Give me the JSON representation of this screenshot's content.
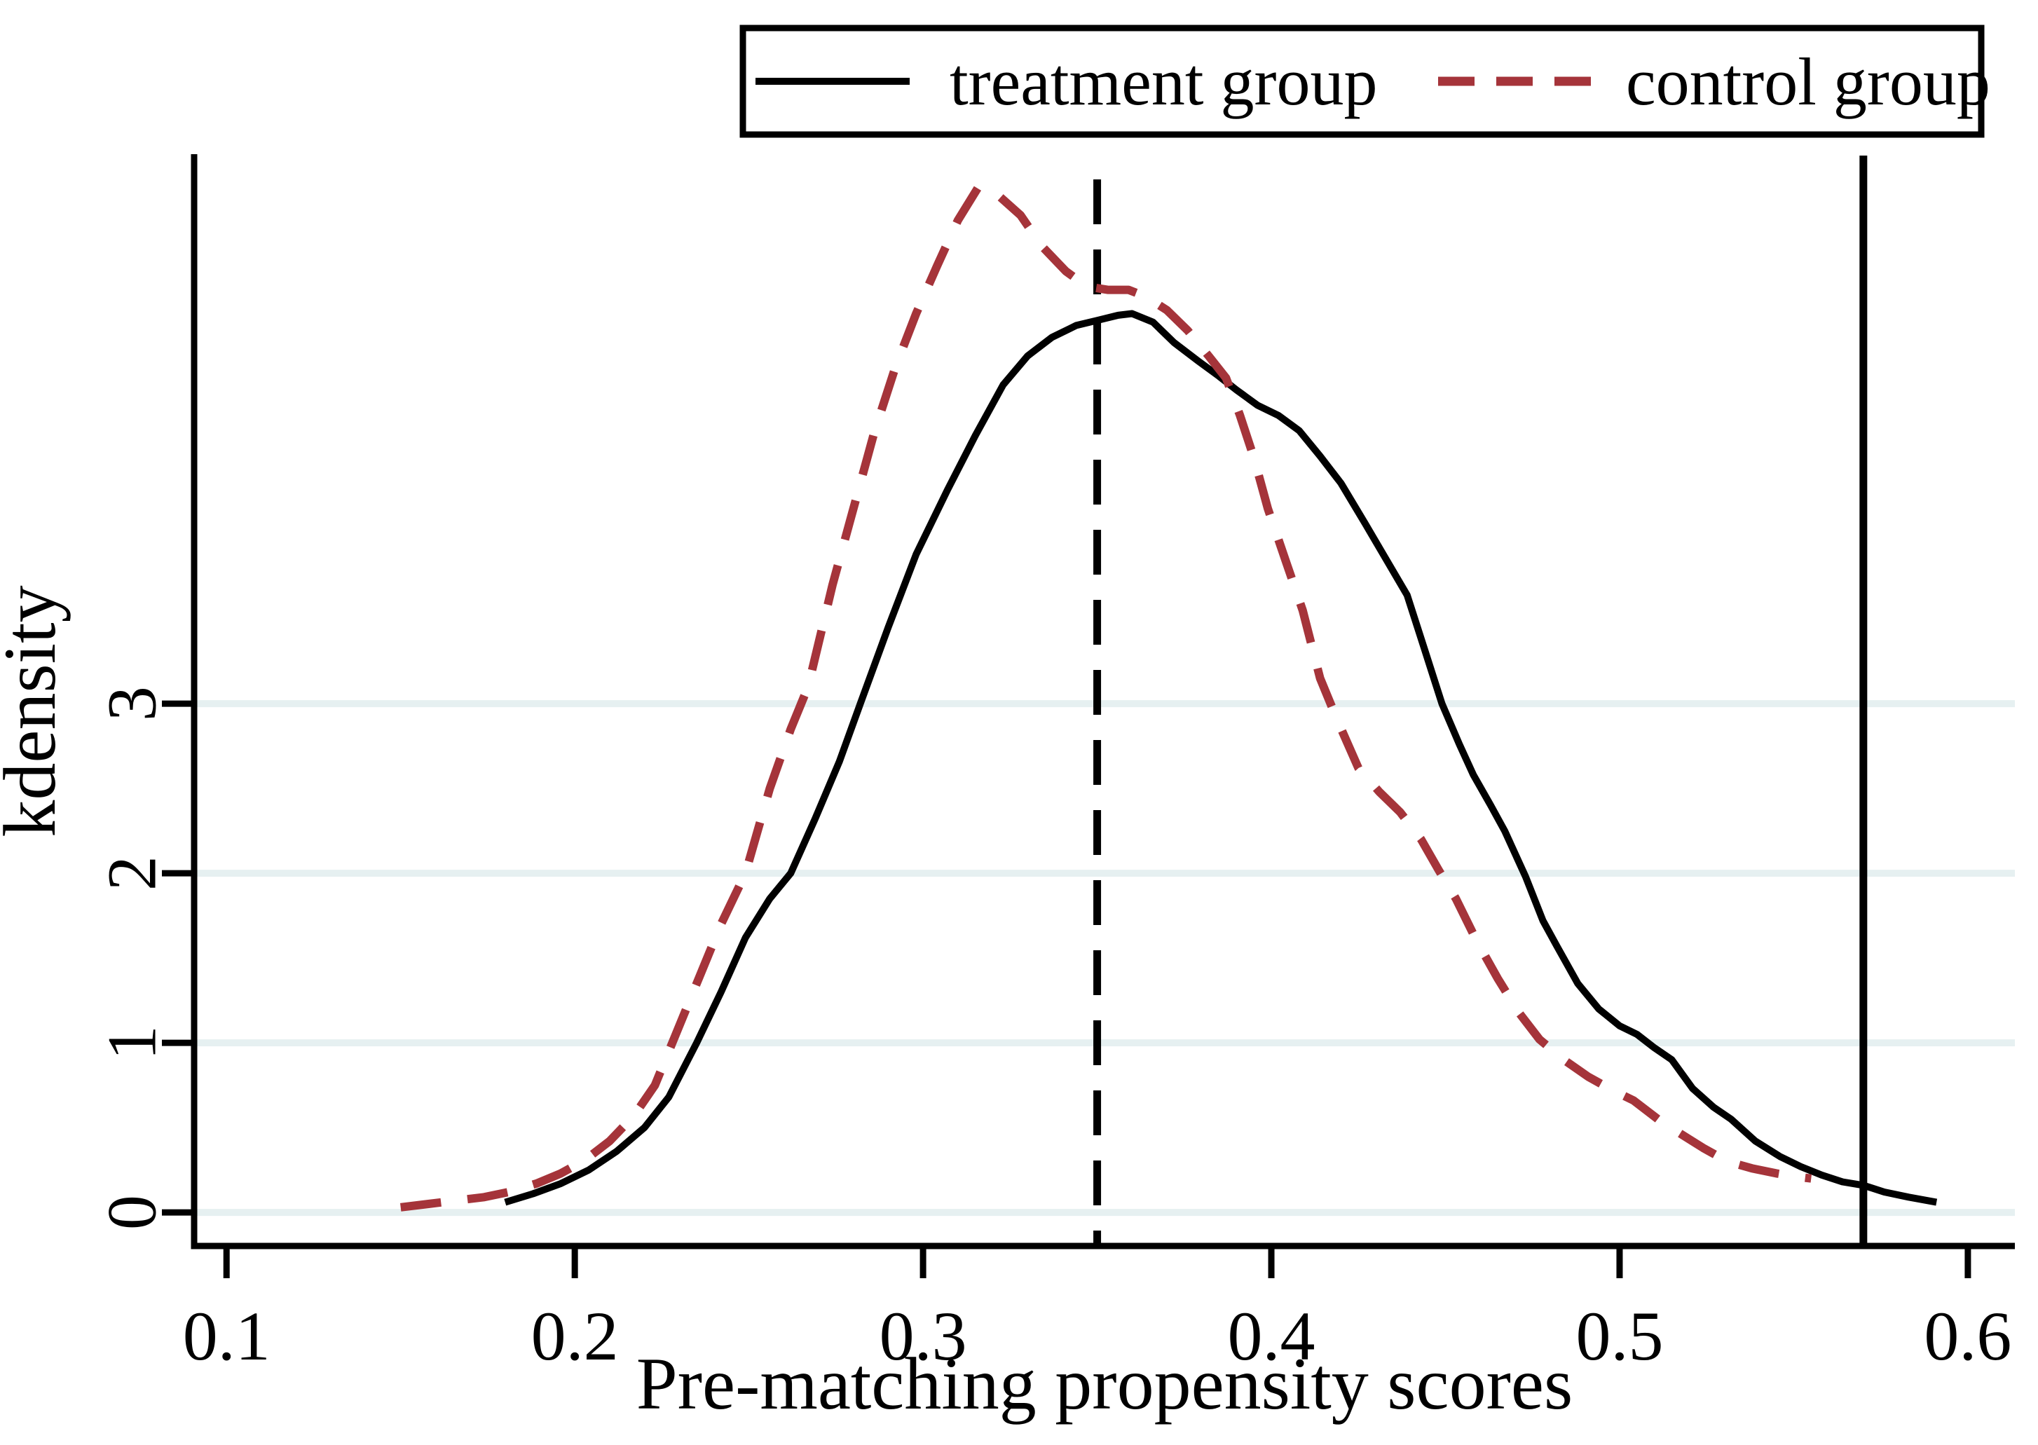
{
  "chart_data": {
    "type": "line",
    "title": "",
    "xlabel": "Pre-matching propensity scores",
    "ylabel": "kdensity",
    "xlim": [
      0.0907,
      0.6135
    ],
    "ylim": [
      -0.198,
      6.24
    ],
    "x_ticks": [
      0.1,
      0.2,
      0.3,
      0.4,
      0.5,
      0.6
    ],
    "x_tick_labels": [
      "0.1",
      "0.2",
      "0.3",
      "0.4",
      "0.5",
      "0.6"
    ],
    "y_ticks": [
      0,
      1,
      2,
      3
    ],
    "y_tick_labels": [
      "0",
      "1",
      "2",
      "3"
    ],
    "grid": "horizontal",
    "gridline_color": "#e6f0f1",
    "legend_position": "top-center-boxed",
    "series": [
      {
        "name": "treatment group",
        "style": "solid",
        "color": "#000000",
        "points": [
          [
            0.18,
            0.06
          ],
          [
            0.188,
            0.11
          ],
          [
            0.196,
            0.17
          ],
          [
            0.204,
            0.25
          ],
          [
            0.212,
            0.36
          ],
          [
            0.22,
            0.5
          ],
          [
            0.227,
            0.68
          ],
          [
            0.235,
            1.0
          ],
          [
            0.242,
            1.3
          ],
          [
            0.249,
            1.62
          ],
          [
            0.256,
            1.85
          ],
          [
            0.262,
            2.0
          ],
          [
            0.269,
            2.32
          ],
          [
            0.276,
            2.66
          ],
          [
            0.282,
            3.0
          ],
          [
            0.29,
            3.45
          ],
          [
            0.298,
            3.88
          ],
          [
            0.307,
            4.26
          ],
          [
            0.315,
            4.58
          ],
          [
            0.323,
            4.88
          ],
          [
            0.33,
            5.05
          ],
          [
            0.337,
            5.16
          ],
          [
            0.344,
            5.23
          ],
          [
            0.35,
            5.26
          ],
          [
            0.356,
            5.29
          ],
          [
            0.36,
            5.3
          ],
          [
            0.366,
            5.25
          ],
          [
            0.372,
            5.13
          ],
          [
            0.379,
            5.02
          ],
          [
            0.385,
            4.93
          ],
          [
            0.39,
            4.85
          ],
          [
            0.396,
            4.76
          ],
          [
            0.402,
            4.7
          ],
          [
            0.408,
            4.61
          ],
          [
            0.414,
            4.46
          ],
          [
            0.42,
            4.3
          ],
          [
            0.427,
            4.06
          ],
          [
            0.433,
            3.85
          ],
          [
            0.439,
            3.64
          ],
          [
            0.444,
            3.32
          ],
          [
            0.449,
            3.0
          ],
          [
            0.454,
            2.76
          ],
          [
            0.458,
            2.58
          ],
          [
            0.463,
            2.4
          ],
          [
            0.467,
            2.25
          ],
          [
            0.473,
            1.98
          ],
          [
            0.478,
            1.72
          ],
          [
            0.482,
            1.57
          ],
          [
            0.488,
            1.35
          ],
          [
            0.494,
            1.2
          ],
          [
            0.5,
            1.1
          ],
          [
            0.505,
            1.05
          ],
          [
            0.51,
            0.97
          ],
          [
            0.515,
            0.9
          ],
          [
            0.521,
            0.73
          ],
          [
            0.527,
            0.62
          ],
          [
            0.532,
            0.55
          ],
          [
            0.539,
            0.42
          ],
          [
            0.546,
            0.33
          ],
          [
            0.552,
            0.27
          ],
          [
            0.558,
            0.22
          ],
          [
            0.564,
            0.18
          ],
          [
            0.57,
            0.16
          ],
          [
            0.576,
            0.12
          ],
          [
            0.583,
            0.09
          ],
          [
            0.591,
            0.06
          ]
        ]
      },
      {
        "name": "control group",
        "style": "dashed",
        "color": "#a5343a",
        "points": [
          [
            0.15,
            0.03
          ],
          [
            0.158,
            0.05
          ],
          [
            0.166,
            0.07
          ],
          [
            0.174,
            0.09
          ],
          [
            0.181,
            0.12
          ],
          [
            0.189,
            0.17
          ],
          [
            0.196,
            0.23
          ],
          [
            0.203,
            0.31
          ],
          [
            0.21,
            0.42
          ],
          [
            0.217,
            0.57
          ],
          [
            0.223,
            0.75
          ],
          [
            0.228,
            1.0
          ],
          [
            0.235,
            1.35
          ],
          [
            0.242,
            1.7
          ],
          [
            0.249,
            2.0
          ],
          [
            0.256,
            2.5
          ],
          [
            0.262,
            2.85
          ],
          [
            0.267,
            3.1
          ],
          [
            0.274,
            3.7
          ],
          [
            0.28,
            4.15
          ],
          [
            0.286,
            4.6
          ],
          [
            0.292,
            4.98
          ],
          [
            0.298,
            5.3
          ],
          [
            0.304,
            5.58
          ],
          [
            0.31,
            5.85
          ],
          [
            0.316,
            6.05
          ],
          [
            0.322,
            5.99
          ],
          [
            0.328,
            5.88
          ],
          [
            0.334,
            5.7
          ],
          [
            0.341,
            5.55
          ],
          [
            0.347,
            5.46
          ],
          [
            0.353,
            5.44
          ],
          [
            0.359,
            5.44
          ],
          [
            0.364,
            5.4
          ],
          [
            0.37,
            5.32
          ],
          [
            0.376,
            5.2
          ],
          [
            0.382,
            5.05
          ],
          [
            0.387,
            4.92
          ],
          [
            0.391,
            4.7
          ],
          [
            0.395,
            4.45
          ],
          [
            0.399,
            4.15
          ],
          [
            0.404,
            3.85
          ],
          [
            0.409,
            3.55
          ],
          [
            0.414,
            3.15
          ],
          [
            0.419,
            2.9
          ],
          [
            0.425,
            2.62
          ],
          [
            0.431,
            2.48
          ],
          [
            0.437,
            2.36
          ],
          [
            0.443,
            2.2
          ],
          [
            0.448,
            2.02
          ],
          [
            0.453,
            1.85
          ],
          [
            0.459,
            1.6
          ],
          [
            0.465,
            1.38
          ],
          [
            0.471,
            1.18
          ],
          [
            0.477,
            1.02
          ],
          [
            0.484,
            0.9
          ],
          [
            0.491,
            0.8
          ],
          [
            0.498,
            0.72
          ],
          [
            0.504,
            0.66
          ],
          [
            0.511,
            0.55
          ],
          [
            0.517,
            0.47
          ],
          [
            0.524,
            0.38
          ],
          [
            0.531,
            0.3
          ],
          [
            0.538,
            0.26
          ],
          [
            0.545,
            0.23
          ],
          [
            0.551,
            0.21
          ],
          [
            0.555,
            0.2
          ]
        ]
      }
    ],
    "reference_lines": [
      {
        "x": 0.35,
        "style": "dashed",
        "color": "#000000"
      },
      {
        "x": 0.57,
        "style": "solid",
        "color": "#000000"
      }
    ],
    "annotations": []
  },
  "legend": {
    "treatment_label": "treatment group",
    "control_label": "control group"
  },
  "axes": {
    "x_title": "Pre-matching propensity scores",
    "y_title": "kdensity"
  },
  "colors": {
    "treatment": "#000000",
    "control": "#a5343a",
    "gridline": "#e6f0f1",
    "axis": "#000000",
    "background": "#ffffff"
  }
}
